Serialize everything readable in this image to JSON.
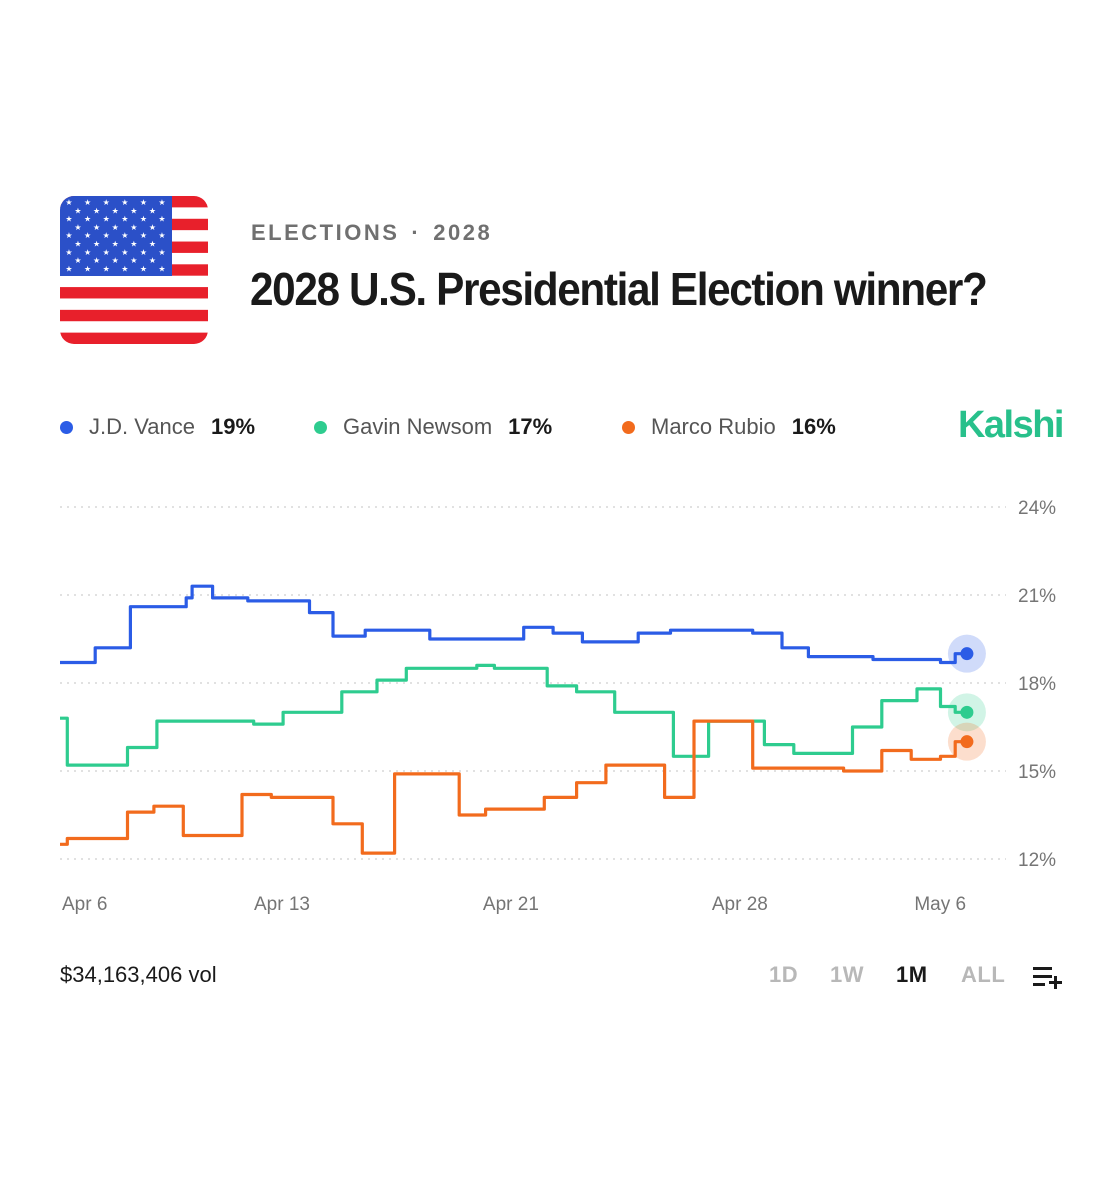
{
  "header": {
    "category": "ELECTIONS",
    "separator": "·",
    "year": "2028",
    "title": "2028 U.S. Presidential Election winner?"
  },
  "brand": "Kalshi",
  "legend": [
    {
      "name": "J.D. Vance",
      "pct": "19%",
      "color": "#2b5ce6"
    },
    {
      "name": "Gavin Newsom",
      "pct": "17%",
      "color": "#2ecc8f"
    },
    {
      "name": "Marco Rubio",
      "pct": "16%",
      "color": "#f26b1d"
    }
  ],
  "footer": {
    "volume": "$34,163,406 vol",
    "ranges": [
      "1D",
      "1W",
      "1M",
      "ALL"
    ],
    "active_range": "1M",
    "icon": "add-to-list-icon"
  },
  "chart_data": {
    "type": "line",
    "step": true,
    "x_unit": "day",
    "x_range": [
      "Apr 5",
      "May 6"
    ],
    "xticks": [
      {
        "label": "Apr 6",
        "x": 0.8
      },
      {
        "label": "Apr 13",
        "x": 7.7
      },
      {
        "label": "Apr 21",
        "x": 15.5
      },
      {
        "label": "Apr 28",
        "x": 23.3
      },
      {
        "label": "May 6",
        "x": 30.2
      }
    ],
    "ylim": [
      11.5,
      24.5
    ],
    "yticks": [
      24,
      21,
      18,
      15,
      12
    ],
    "ytick_format": "%",
    "grid": true,
    "series": [
      {
        "name": "J.D. Vance",
        "color": "#2b5ce6",
        "last": 19.0,
        "points": [
          [
            0,
            18.7
          ],
          [
            1.2,
            18.7
          ],
          [
            1.2,
            19.2
          ],
          [
            2.4,
            19.2
          ],
          [
            2.4,
            20.6
          ],
          [
            4.3,
            20.6
          ],
          [
            4.3,
            20.9
          ],
          [
            4.5,
            20.9
          ],
          [
            4.5,
            21.3
          ],
          [
            5.2,
            21.3
          ],
          [
            5.2,
            20.9
          ],
          [
            6.4,
            20.9
          ],
          [
            6.4,
            20.8
          ],
          [
            8.5,
            20.8
          ],
          [
            8.5,
            20.4
          ],
          [
            9.3,
            20.4
          ],
          [
            9.3,
            19.6
          ],
          [
            10.4,
            19.6
          ],
          [
            10.4,
            19.8
          ],
          [
            12.6,
            19.8
          ],
          [
            12.6,
            19.5
          ],
          [
            15.8,
            19.5
          ],
          [
            15.8,
            19.9
          ],
          [
            16.8,
            19.9
          ],
          [
            16.8,
            19.7
          ],
          [
            17.8,
            19.7
          ],
          [
            17.8,
            19.4
          ],
          [
            19.7,
            19.4
          ],
          [
            19.7,
            19.7
          ],
          [
            20.8,
            19.7
          ],
          [
            20.8,
            19.8
          ],
          [
            23.6,
            19.8
          ],
          [
            23.6,
            19.7
          ],
          [
            24.6,
            19.7
          ],
          [
            24.6,
            19.2
          ],
          [
            25.5,
            19.2
          ],
          [
            25.5,
            18.9
          ],
          [
            27.7,
            18.9
          ],
          [
            27.7,
            18.8
          ],
          [
            30.0,
            18.8
          ],
          [
            30.0,
            18.7
          ],
          [
            30.5,
            18.7
          ],
          [
            30.5,
            19.0
          ],
          [
            30.9,
            19.0
          ]
        ]
      },
      {
        "name": "Gavin Newsom",
        "color": "#2ecc8f",
        "last": 17.0,
        "points": [
          [
            0,
            16.8
          ],
          [
            0.25,
            16.8
          ],
          [
            0.25,
            15.2
          ],
          [
            2.3,
            15.2
          ],
          [
            2.3,
            15.8
          ],
          [
            3.3,
            15.8
          ],
          [
            3.3,
            16.7
          ],
          [
            6.6,
            16.7
          ],
          [
            6.6,
            16.6
          ],
          [
            7.6,
            16.6
          ],
          [
            7.6,
            17.0
          ],
          [
            9.6,
            17.0
          ],
          [
            9.6,
            17.7
          ],
          [
            10.8,
            17.7
          ],
          [
            10.8,
            18.1
          ],
          [
            11.8,
            18.1
          ],
          [
            11.8,
            18.5
          ],
          [
            14.2,
            18.5
          ],
          [
            14.2,
            18.6
          ],
          [
            14.8,
            18.6
          ],
          [
            14.8,
            18.5
          ],
          [
            16.6,
            18.5
          ],
          [
            16.6,
            17.9
          ],
          [
            17.6,
            17.9
          ],
          [
            17.6,
            17.7
          ],
          [
            18.9,
            17.7
          ],
          [
            18.9,
            17.0
          ],
          [
            20.9,
            17.0
          ],
          [
            20.9,
            15.5
          ],
          [
            22.1,
            15.5
          ],
          [
            22.1,
            16.7
          ],
          [
            24.0,
            16.7
          ],
          [
            24.0,
            15.9
          ],
          [
            25.0,
            15.9
          ],
          [
            25.0,
            15.6
          ],
          [
            27.0,
            15.6
          ],
          [
            27.0,
            16.5
          ],
          [
            28.0,
            16.5
          ],
          [
            28.0,
            17.4
          ],
          [
            29.2,
            17.4
          ],
          [
            29.2,
            17.8
          ],
          [
            30.0,
            17.8
          ],
          [
            30.0,
            17.2
          ],
          [
            30.5,
            17.2
          ],
          [
            30.5,
            17.0
          ],
          [
            30.9,
            17.0
          ]
        ]
      },
      {
        "name": "Marco Rubio",
        "color": "#f26b1d",
        "last": 16.0,
        "points": [
          [
            0,
            12.5
          ],
          [
            0.25,
            12.5
          ],
          [
            0.25,
            12.7
          ],
          [
            2.3,
            12.7
          ],
          [
            2.3,
            13.6
          ],
          [
            3.2,
            13.6
          ],
          [
            3.2,
            13.8
          ],
          [
            4.2,
            13.8
          ],
          [
            4.2,
            12.8
          ],
          [
            6.2,
            12.8
          ],
          [
            6.2,
            14.2
          ],
          [
            7.2,
            14.2
          ],
          [
            7.2,
            14.1
          ],
          [
            9.3,
            14.1
          ],
          [
            9.3,
            13.2
          ],
          [
            10.3,
            13.2
          ],
          [
            10.3,
            12.2
          ],
          [
            11.4,
            12.2
          ],
          [
            11.4,
            14.9
          ],
          [
            13.6,
            14.9
          ],
          [
            13.6,
            13.5
          ],
          [
            14.5,
            13.5
          ],
          [
            14.5,
            13.7
          ],
          [
            16.5,
            13.7
          ],
          [
            16.5,
            14.1
          ],
          [
            17.6,
            14.1
          ],
          [
            17.6,
            14.6
          ],
          [
            18.6,
            14.6
          ],
          [
            18.6,
            15.2
          ],
          [
            20.6,
            15.2
          ],
          [
            20.6,
            14.1
          ],
          [
            21.6,
            14.1
          ],
          [
            21.6,
            16.7
          ],
          [
            23.6,
            16.7
          ],
          [
            23.6,
            15.1
          ],
          [
            26.7,
            15.1
          ],
          [
            26.7,
            15.0
          ],
          [
            28.0,
            15.0
          ],
          [
            28.0,
            15.7
          ],
          [
            29.0,
            15.7
          ],
          [
            29.0,
            15.4
          ],
          [
            30.0,
            15.4
          ],
          [
            30.0,
            15.5
          ],
          [
            30.5,
            15.5
          ],
          [
            30.5,
            16.0
          ],
          [
            30.9,
            16.0
          ]
        ]
      }
    ]
  }
}
